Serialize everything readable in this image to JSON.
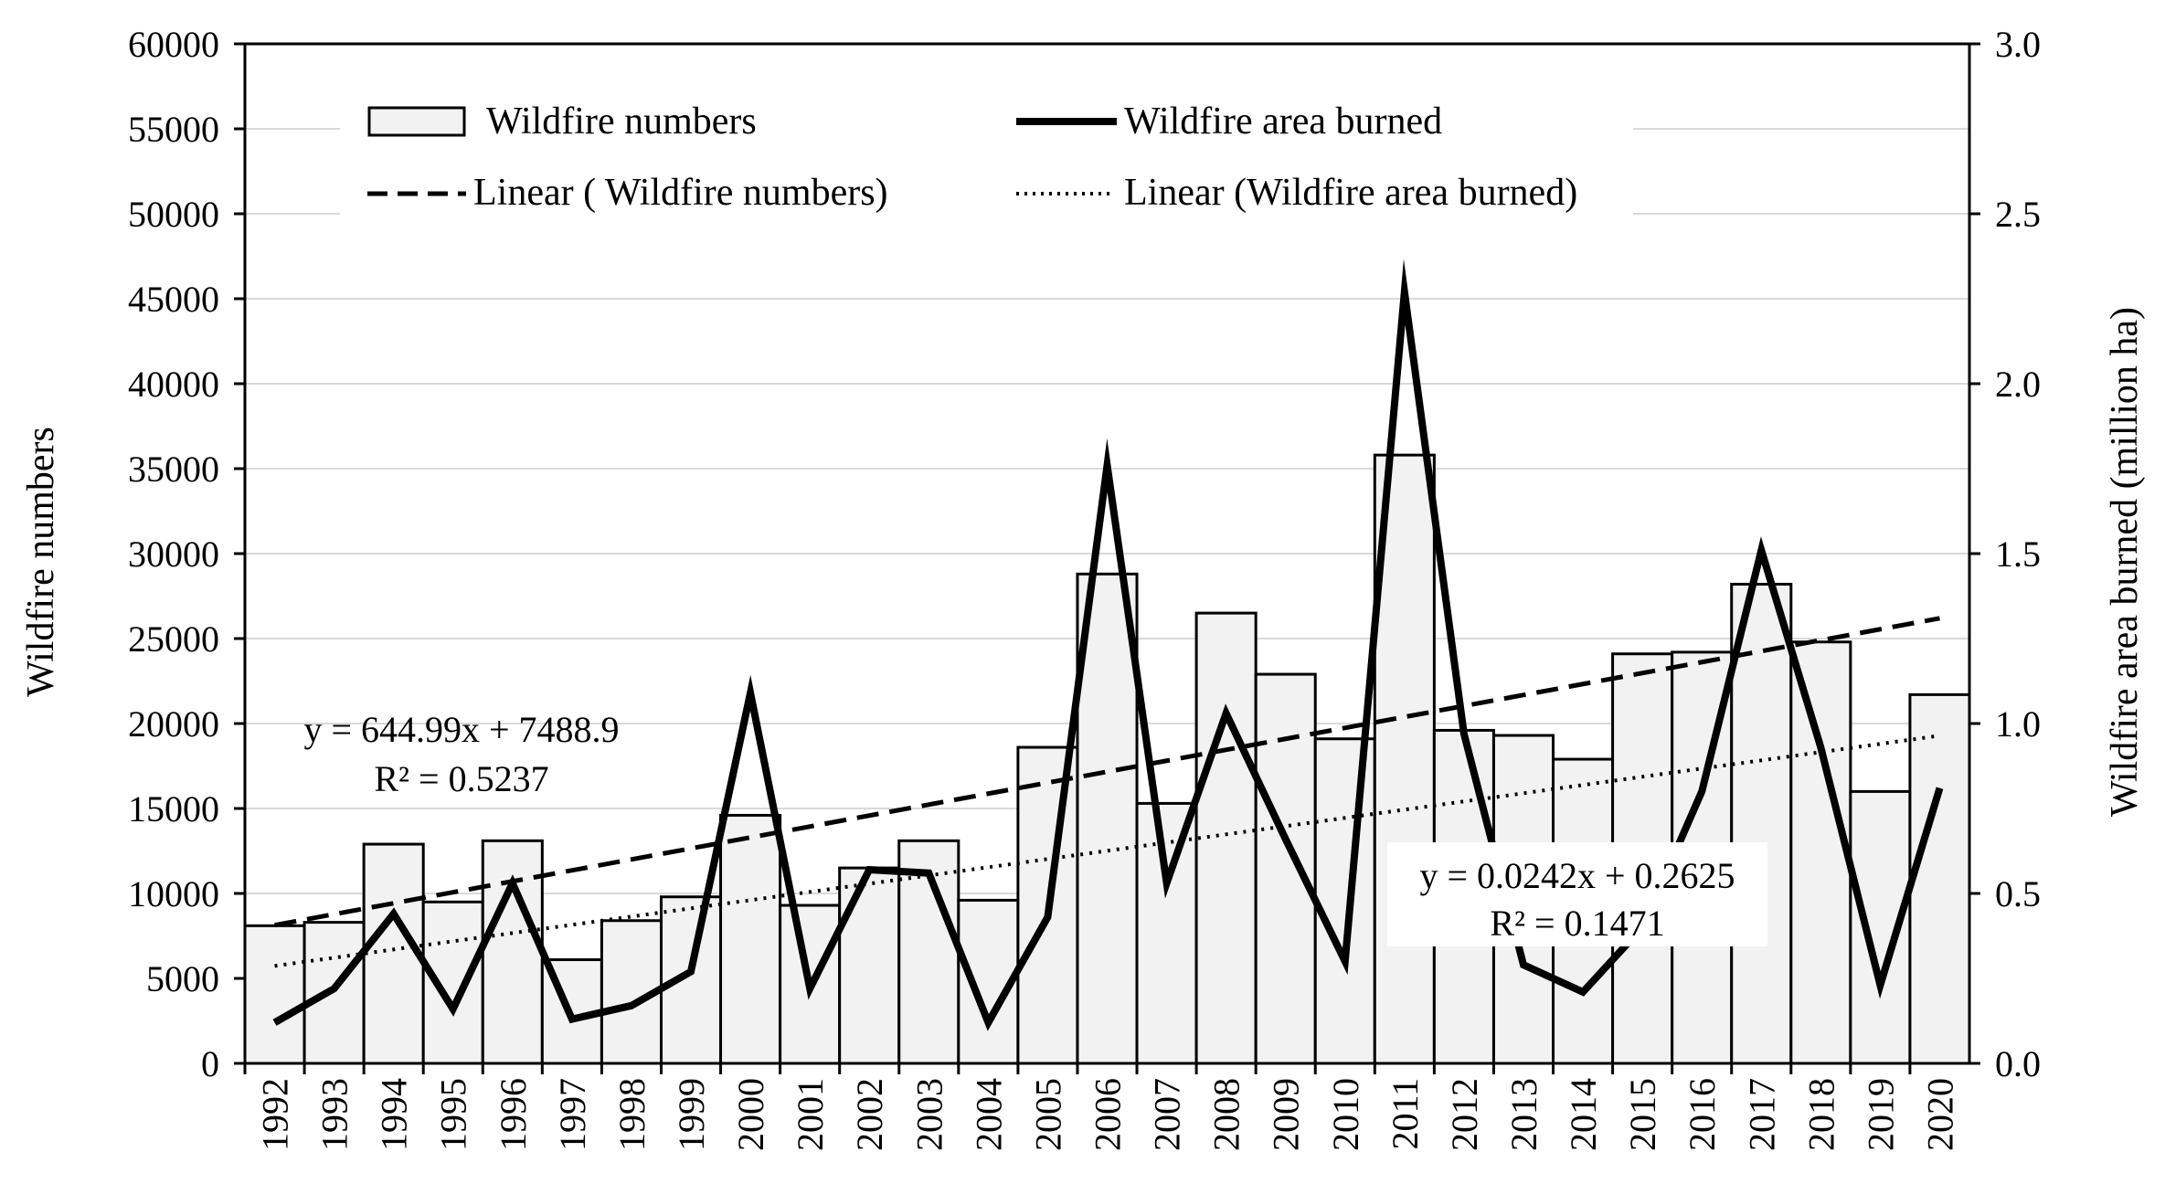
{
  "chart_data": {
    "type": "bar",
    "categories": [
      "1992",
      "1993",
      "1994",
      "1995",
      "1996",
      "1997",
      "1998",
      "1999",
      "2000",
      "2001",
      "2002",
      "2003",
      "2004",
      "2005",
      "2006",
      "2007",
      "2008",
      "2009",
      "2010",
      "2011",
      "2012",
      "2013",
      "2014",
      "2015",
      "2016",
      "2017",
      "2018",
      "2019",
      "2020"
    ],
    "series": [
      {
        "name": "Wildfire numbers",
        "type": "bar",
        "axis": "left",
        "values": [
          8100,
          8300,
          12900,
          9500,
          13100,
          6100,
          8400,
          9800,
          14600,
          9300,
          11500,
          13100,
          9600,
          18600,
          28800,
          15300,
          26500,
          22900,
          19100,
          35800,
          19600,
          19300,
          17900,
          24100,
          24200,
          28200,
          24800,
          16000,
          21700
        ]
      },
      {
        "name": "Wildfire area burned",
        "type": "line",
        "axis": "right",
        "values": [
          0.12,
          0.22,
          0.44,
          0.16,
          0.53,
          0.13,
          0.17,
          0.27,
          1.09,
          0.22,
          0.57,
          0.56,
          0.12,
          0.43,
          1.76,
          0.53,
          1.03,
          0.66,
          0.3,
          2.27,
          0.97,
          0.29,
          0.21,
          0.4,
          0.8,
          1.51,
          0.93,
          0.23,
          0.81
        ]
      }
    ],
    "trendlines": [
      {
        "name": "Linear ( Wildfire numbers)",
        "style": "dashed",
        "axis": "left",
        "slope": 644.99,
        "intercept": 7488.9
      },
      {
        "name": "Linear (Wildfire area burned)",
        "style": "dotted",
        "axis": "right",
        "slope": 0.0242,
        "intercept": 0.2625
      }
    ],
    "annotations": {
      "numbers_eq": "y = 644.99x + 7488.9",
      "numbers_r2": "R² = 0.5237",
      "area_eq": "y = 0.0242x + 0.2625",
      "area_r2": "R² = 0.1471"
    },
    "ylabel": "Wildfire numbers",
    "y2label": "Wildfire area burned (million ha)",
    "ylim": [
      0,
      60000
    ],
    "y2lim": [
      0,
      3.0
    ],
    "yticks": [
      "0",
      "5000",
      "10000",
      "15000",
      "20000",
      "25000",
      "30000",
      "35000",
      "40000",
      "45000",
      "50000",
      "55000",
      "60000"
    ],
    "y2ticks": [
      "0.0",
      "0.5",
      "1.0",
      "1.5",
      "2.0",
      "2.5",
      "3.0"
    ],
    "grid": true,
    "legend_position": "top"
  }
}
